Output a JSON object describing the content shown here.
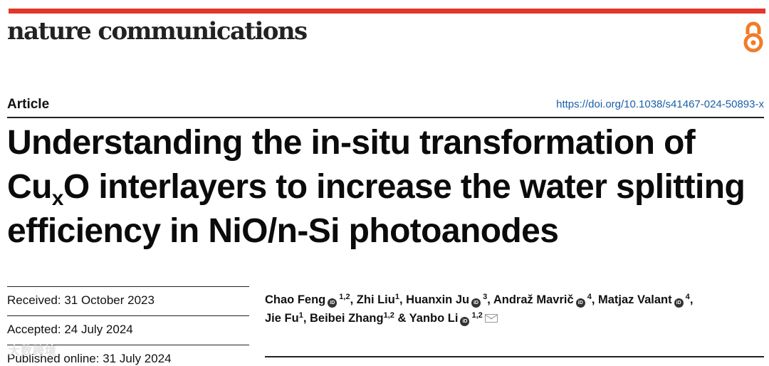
{
  "journal": {
    "name": "nature communications",
    "open_access_icon": "open-access-icon",
    "accent_color": "#e2372a",
    "oa_color": "#f07c2a"
  },
  "article": {
    "type": "Article",
    "doi": "https://doi.org/10.1038/s41467-024-50893-x",
    "title_part1": "Understanding the in-situ transformation of Cu",
    "title_sub": "x",
    "title_part2": "O interlayers to increase the water splitting efficiency in NiO/n-Si photoanodes"
  },
  "dates": {
    "received": "Received: 31 October 2023",
    "accepted": "Accepted: 24 July 2024",
    "published": "Published online: 31 July 2024"
  },
  "authors": [
    {
      "name": "Chao Feng",
      "aff": "1,2",
      "orcid": true
    },
    {
      "name": "Zhi Liu",
      "aff": "1",
      "orcid": false
    },
    {
      "name": "Huanxin Ju",
      "aff": "3",
      "orcid": true
    },
    {
      "name": "Andraž Mavrič",
      "aff": "4",
      "orcid": true
    },
    {
      "name": "Matjaz Valant",
      "aff": "4",
      "orcid": true
    },
    {
      "name": "Jie Fu",
      "aff": "1",
      "orcid": false
    },
    {
      "name": "Beibei Zhang",
      "aff": "1,2",
      "orcid": false
    },
    {
      "name": "Yanbo Li",
      "aff": "1,2",
      "orcid": true,
      "corresponding": true
    }
  ],
  "watermark": "大数跨境"
}
